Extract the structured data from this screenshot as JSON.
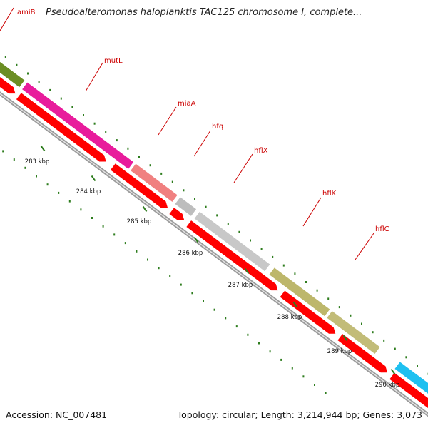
{
  "title": "Pseudoalteromonas haloplanktis TAC125 chromosome I, complete...",
  "footer": {
    "accession": "Accession: NC_007481",
    "summary": "Topology: circular; Length: 3,214,944 bp; Genes: 3,073"
  },
  "genome_track": {
    "ticks": [
      {
        "label": "283 kbp"
      },
      {
        "label": "284 kbp"
      },
      {
        "label": "285 kbp"
      },
      {
        "label": "286 kbp"
      },
      {
        "label": "287 kbp"
      },
      {
        "label": "288 kbp"
      },
      {
        "label": "289 kbp"
      },
      {
        "label": "290 kbp"
      }
    ],
    "genes": [
      {
        "name": "amiB",
        "color": "#6b8e23"
      },
      {
        "name": "mutL",
        "color": "#e81c9c"
      },
      {
        "name": "miaA",
        "color": "#f08080"
      },
      {
        "name": "hfq",
        "color": "#bdbdbd"
      },
      {
        "name": "hflX",
        "color": "#c8c8c8"
      },
      {
        "name": "hflK",
        "color": "#bdb76b"
      },
      {
        "name": "hflC",
        "color": "#c2bc78"
      },
      {
        "name": "",
        "color": "#1ec0f0"
      }
    ],
    "colors": {
      "cds": "#ff0000",
      "backbone": "#888888",
      "tick": "#2e7d1e",
      "label": "#cc0000"
    }
  }
}
